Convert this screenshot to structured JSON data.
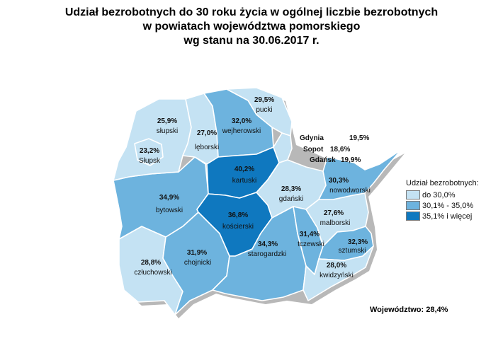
{
  "title": {
    "line1": "Udział bezrobotnych do 30 roku życia w ogólnej liczbie bezrobotnych",
    "line2": "w powiatach województwa pomorskiego",
    "line3": "wg stanu na 30.06.2017 r."
  },
  "colors": {
    "light": "#c4e2f3",
    "medium": "#6db3de",
    "dark": "#0f78bf",
    "border": "#ffffff"
  },
  "regions": [
    {
      "id": "pucki",
      "name": "pucki",
      "value": "29,5%",
      "class": "light"
    },
    {
      "id": "wejherowski",
      "name": "wejherowski",
      "value": "32,0%",
      "class": "medium"
    },
    {
      "id": "slupski",
      "name": "słupski",
      "value": "25,9%",
      "class": "light"
    },
    {
      "id": "slupsk",
      "name": "Słupsk",
      "value": "23,2%",
      "class": "light"
    },
    {
      "id": "leborski",
      "name": "lęborski",
      "value": "27,0%",
      "class": "light"
    },
    {
      "id": "kartuski",
      "name": "kartuski",
      "value": "40,2%",
      "class": "dark"
    },
    {
      "id": "bytowski",
      "name": "bytowski",
      "value": "34,9%",
      "class": "medium"
    },
    {
      "id": "koscierski",
      "name": "kościerski",
      "value": "36,8%",
      "class": "dark"
    },
    {
      "id": "gdanski",
      "name": "gdański",
      "value": "28,3%",
      "class": "light"
    },
    {
      "id": "nowodworski",
      "name": "nowodworski",
      "value": "30,3%",
      "class": "medium"
    },
    {
      "id": "malborski",
      "name": "malborski",
      "value": "27,6%",
      "class": "light"
    },
    {
      "id": "tczewski",
      "name": "tczewski",
      "value": "31,4%",
      "class": "medium"
    },
    {
      "id": "sztumski",
      "name": "sztumski",
      "value": "32,3%",
      "class": "medium"
    },
    {
      "id": "kwidzynski",
      "name": "kwidzyński",
      "value": "28,0%",
      "class": "light"
    },
    {
      "id": "starogardzki",
      "name": "starogardzki",
      "value": "34,3%",
      "class": "medium"
    },
    {
      "id": "chojnicki",
      "name": "chojnicki",
      "value": "31,9%",
      "class": "medium"
    },
    {
      "id": "czluchowski",
      "name": "człuchowski",
      "value": "28,8%",
      "class": "light"
    }
  ],
  "cities": [
    {
      "name": "Gdynia",
      "value": "19,5%"
    },
    {
      "name": "Sopot",
      "value": "18,6%"
    },
    {
      "name": "Gdańsk",
      "value": "19,9%"
    }
  ],
  "legend": {
    "title": "Udział bezrobotnych:",
    "items": [
      {
        "label": "do 30,0%",
        "class": "light"
      },
      {
        "label": "30,1% - 35,0%",
        "class": "medium"
      },
      {
        "label": "35,1% i więcej",
        "class": "dark"
      }
    ]
  },
  "total": "Województwo: 28,4%"
}
